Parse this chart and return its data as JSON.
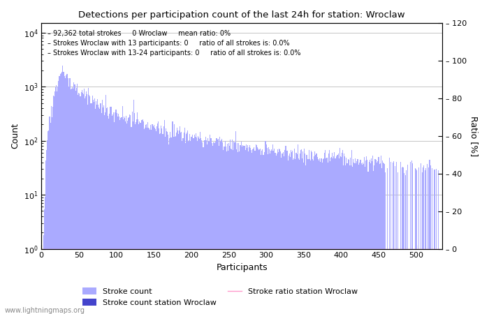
{
  "title": "Detections per participation count of the last 24h for station: Wroclaw",
  "xlabel": "Participants",
  "ylabel_left": "Count",
  "ylabel_right": "Ratio [%]",
  "annotation_lines": [
    "92,362 total strokes     0 Wroclaw     mean ratio: 0%",
    "Strokes Wroclaw with 13 participants: 0     ratio of all strokes is: 0.0%",
    "Strokes Wroclaw with 13-24 participants: 0     ratio of all strokes is: 0.0%"
  ],
  "watermark": "www.lightningmaps.org",
  "bar_color": "#aaaaff",
  "station_bar_color": "#4444cc",
  "ratio_line_color": "#ff99cc",
  "xlim": [
    0,
    535
  ],
  "ylim_log_min": 1,
  "ylim_log_max": 15000,
  "ylim_right": [
    0,
    120
  ],
  "yticks_right": [
    0,
    20,
    40,
    60,
    80,
    100,
    120
  ],
  "xticks": [
    0,
    50,
    100,
    150,
    200,
    250,
    300,
    350,
    400,
    450,
    500
  ],
  "legend_stroke_count_label": "Stroke count",
  "legend_station_label": "Stroke count station Wroclaw",
  "legend_ratio_label": "Stroke ratio station Wroclaw",
  "background_color": "#ffffff",
  "grid_color": "#bbbbbb",
  "figsize": [
    7.0,
    4.5
  ],
  "dpi": 100
}
